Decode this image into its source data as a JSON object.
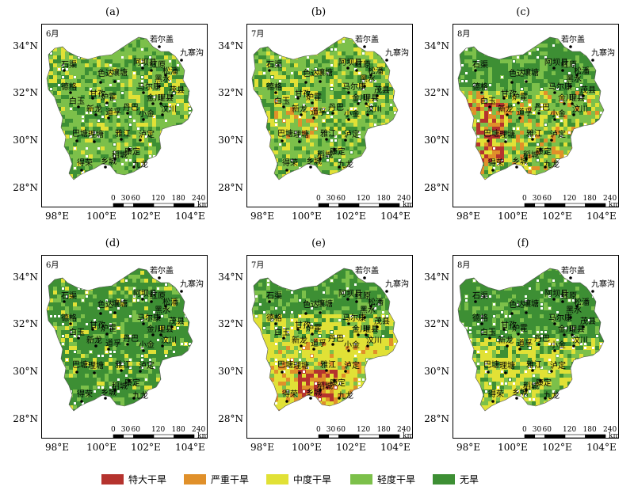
{
  "panels": [
    {
      "label": "(a)",
      "month": "6月"
    },
    {
      "label": "(b)",
      "month": "7月"
    },
    {
      "label": "(c)",
      "month": "8月"
    },
    {
      "label": "(d)",
      "month": "6月"
    },
    {
      "label": "(e)",
      "month": "7月"
    },
    {
      "label": "(f)",
      "month": "8月"
    }
  ],
  "lat_ticks": [
    "34°N",
    "32°N",
    "30°N",
    "28°N"
  ],
  "lon_ticks": [
    "98°E",
    "100°E",
    "102°E",
    "104°E"
  ],
  "scale_bar": {
    "ticks": [
      "0",
      "30",
      "60",
      "120",
      "180",
      "240"
    ],
    "unit": "km"
  },
  "cities": [
    "若尔盖",
    "九寨沟",
    "阿坝县",
    "红原",
    "松潘",
    "石渠",
    "色达",
    "壤塘",
    "黑水",
    "茂县",
    "德格",
    "甘孜",
    "马尔康",
    "金川",
    "理县",
    "白玉",
    "炉霍",
    "新龙",
    "道孚",
    "丹巴",
    "小金",
    "汶川",
    "巴塘",
    "理塘",
    "雅江",
    "康定",
    "泸定",
    "稻城",
    "得荣",
    "九龙",
    "乡城"
  ],
  "legend": [
    {
      "label": "特大干旱",
      "color": "#b5332e"
    },
    {
      "label": "严重干旱",
      "color": "#e0902a"
    },
    {
      "label": "中度干旱",
      "color": "#e1e136"
    },
    {
      "label": "轻度干旱",
      "color": "#7cc04a"
    },
    {
      "label": "无旱",
      "color": "#3d8f34"
    }
  ]
}
